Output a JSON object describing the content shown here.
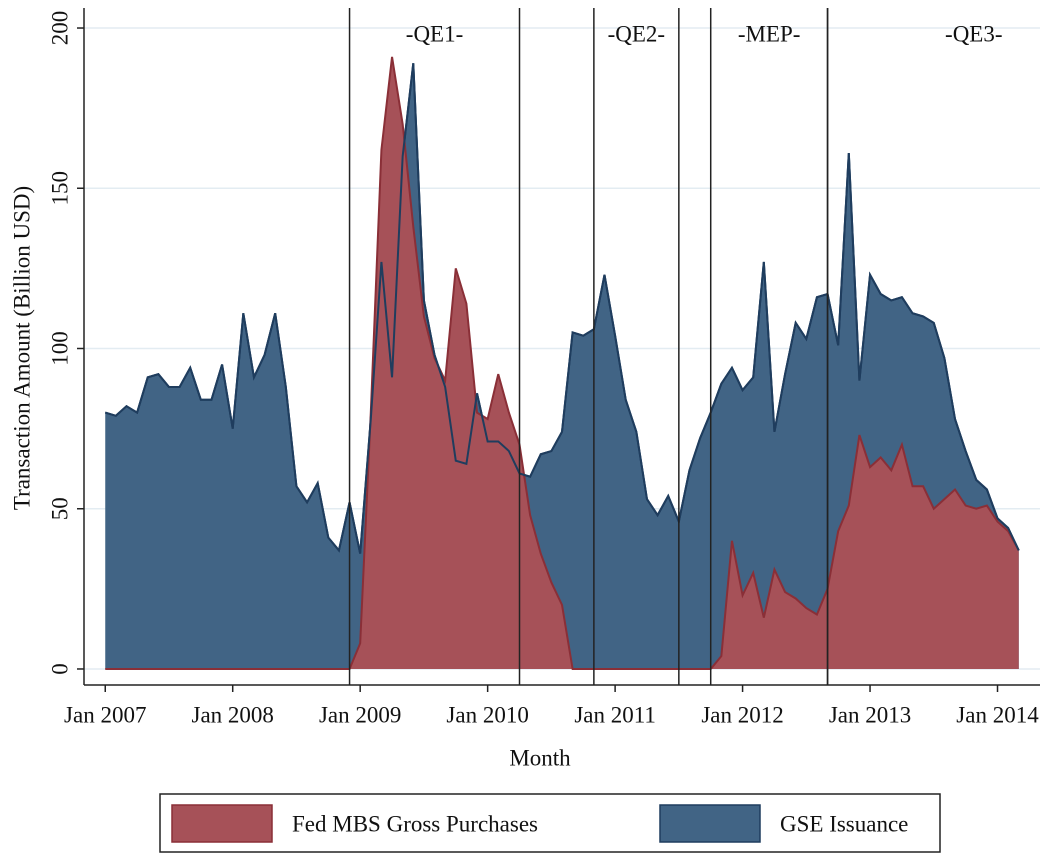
{
  "chart_data": {
    "type": "area",
    "xlabel": "Month",
    "ylabel": "Transaction Amount (Billion USD)",
    "x": [
      "2007-01",
      "2007-02",
      "2007-03",
      "2007-04",
      "2007-05",
      "2007-06",
      "2007-07",
      "2007-08",
      "2007-09",
      "2007-10",
      "2007-11",
      "2007-12",
      "2008-01",
      "2008-02",
      "2008-03",
      "2008-04",
      "2008-05",
      "2008-06",
      "2008-07",
      "2008-08",
      "2008-09",
      "2008-10",
      "2008-11",
      "2008-12",
      "2009-01",
      "2009-02",
      "2009-03",
      "2009-04",
      "2009-05",
      "2009-06",
      "2009-07",
      "2009-08",
      "2009-09",
      "2009-10",
      "2009-11",
      "2009-12",
      "2010-01",
      "2010-02",
      "2010-03",
      "2010-04",
      "2010-05",
      "2010-06",
      "2010-07",
      "2010-08",
      "2010-09",
      "2010-10",
      "2010-11",
      "2010-12",
      "2011-01",
      "2011-02",
      "2011-03",
      "2011-04",
      "2011-05",
      "2011-06",
      "2011-07",
      "2011-08",
      "2011-09",
      "2011-10",
      "2011-11",
      "2011-12",
      "2012-01",
      "2012-02",
      "2012-03",
      "2012-04",
      "2012-05",
      "2012-06",
      "2012-07",
      "2012-08",
      "2012-09",
      "2012-10",
      "2012-11",
      "2012-12",
      "2013-01",
      "2013-02",
      "2013-03",
      "2013-04",
      "2013-05",
      "2013-06",
      "2013-07",
      "2013-08",
      "2013-09",
      "2013-10",
      "2013-11",
      "2013-12",
      "2014-01",
      "2014-02",
      "2014-03"
    ],
    "series": [
      {
        "name": "GSE Issuance",
        "color": "#416485",
        "line_color": "#1f3d5e",
        "values": [
          80,
          79,
          82,
          80,
          91,
          92,
          88,
          88,
          94,
          84,
          84,
          95,
          75,
          111,
          91,
          98,
          111,
          88,
          57,
          52,
          58,
          41,
          37,
          52,
          36,
          78,
          127,
          91,
          160,
          189,
          115,
          98,
          88,
          65,
          64,
          86,
          71,
          71,
          68,
          61,
          60,
          67,
          68,
          74,
          105,
          104,
          106,
          123,
          104,
          84,
          74,
          53,
          48,
          54,
          46,
          62,
          72,
          80,
          89,
          94,
          87,
          91,
          127,
          74,
          92,
          108,
          103,
          116,
          117,
          101,
          161,
          90,
          123,
          117,
          115,
          116,
          111,
          110,
          108,
          97,
          78,
          68,
          59,
          56,
          47,
          44,
          37
        ]
      },
      {
        "name": "Fed MBS Gross Purchases",
        "color": "#a65158",
        "line_color": "#8a2f37",
        "values": [
          0,
          0,
          0,
          0,
          0,
          0,
          0,
          0,
          0,
          0,
          0,
          0,
          0,
          0,
          0,
          0,
          0,
          0,
          0,
          0,
          0,
          0,
          0,
          0,
          8,
          80,
          162,
          191,
          170,
          138,
          110,
          97,
          90,
          125,
          114,
          80,
          78,
          92,
          80,
          70,
          48,
          36,
          27,
          20,
          0,
          0,
          0,
          0,
          0,
          0,
          0,
          0,
          0,
          0,
          0,
          0,
          0,
          0,
          4,
          40,
          23,
          30,
          16,
          31,
          24,
          22,
          19,
          17,
          25,
          43,
          51,
          73,
          63,
          66,
          62,
          70,
          57,
          57,
          50,
          53,
          56,
          51,
          50,
          51,
          46,
          43,
          37
        ]
      }
    ],
    "legend_order": [
      1,
      0
    ],
    "xlim": [
      "2006-11",
      "2014-05"
    ],
    "xticks": [
      {
        "value": "2007-01",
        "label": "Jan 2007"
      },
      {
        "value": "2008-01",
        "label": "Jan 2008"
      },
      {
        "value": "2009-01",
        "label": "Jan 2009"
      },
      {
        "value": "2010-01",
        "label": "Jan 2010"
      },
      {
        "value": "2011-01",
        "label": "Jan 2011"
      },
      {
        "value": "2012-01",
        "label": "Jan 2012"
      },
      {
        "value": "2013-01",
        "label": "Jan 2013"
      },
      {
        "value": "2014-01",
        "label": "Jan 2014"
      }
    ],
    "ylim": [
      -5,
      205
    ],
    "yticks": [
      0,
      50,
      100,
      150,
      200
    ],
    "grid": true,
    "annotations": [
      {
        "text": "-QE1-",
        "start": "2008-12",
        "end": "2010-04"
      },
      {
        "text": "-QE2-",
        "start": "2010-11",
        "end": "2011-07"
      },
      {
        "text": "-MEP-",
        "start": "2011-10",
        "end": "2012-09"
      },
      {
        "text": "-QE3-",
        "start": "2012-09"
      }
    ]
  }
}
